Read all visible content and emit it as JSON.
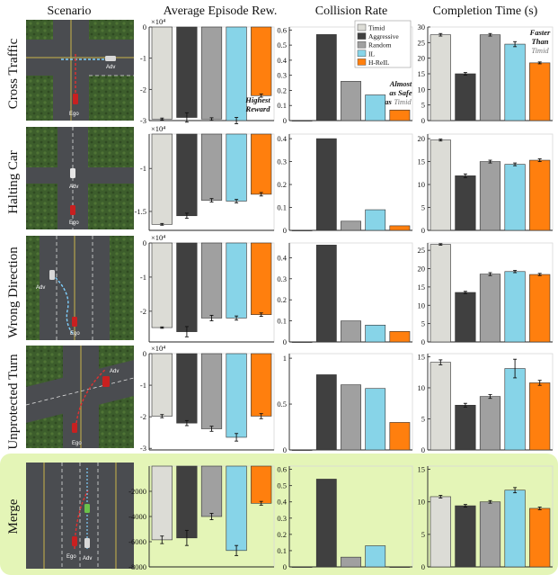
{
  "columns": {
    "scenario": "Scenario",
    "reward": "Average Episode Rew.",
    "collision": "Collision Rate",
    "time": "Completion Time (s)"
  },
  "scene_labels": {
    "ego": "Ego",
    "adv": "Adv"
  },
  "legend": {
    "placement": "top-right of Cross Traffic collision panel",
    "entries": [
      {
        "name": "Timid",
        "color": "#dcdcd6"
      },
      {
        "name": "Aggressive",
        "color": "#404040"
      },
      {
        "name": "Random",
        "color": "#a0a0a0"
      },
      {
        "name": "IL",
        "color": "#87d4e8"
      },
      {
        "name": "H-ReIL",
        "color": "#ff7f0e"
      }
    ]
  },
  "annotations": {
    "highest_reward": [
      "Highest",
      "Reward"
    ],
    "almost_safe": [
      "Almost",
      "as Safe",
      "as"
    ],
    "almost_safe_ref": "Timid",
    "faster_than": [
      "Faster",
      "Than"
    ],
    "faster_than_ref": "Timid"
  },
  "merge_highlight_color": "#e4f5b7",
  "chart_data": [
    {
      "scenario": "Cross Traffic",
      "reward": {
        "type": "bar",
        "multiplier": "×10⁴",
        "values": [
          -2.95,
          -2.9,
          -2.95,
          -3.0,
          -2.2
        ],
        "errors": [
          0.03,
          0.15,
          0.04,
          0.1,
          0.05
        ],
        "ylim": [
          -3,
          0
        ],
        "ticks": [
          0,
          -1,
          -2,
          -3
        ],
        "tick_labels": [
          "0",
          "-1",
          "-2",
          "-3"
        ]
      },
      "collision": {
        "type": "bar",
        "values": [
          0.0,
          0.57,
          0.26,
          0.17,
          0.07
        ],
        "errors": [
          0,
          0,
          0,
          0,
          0
        ],
        "ylim": [
          0,
          0.62
        ],
        "ticks": [
          0,
          0.1,
          0.2,
          0.3,
          0.4,
          0.5,
          0.6
        ],
        "tick_labels": [
          "0",
          "0.1",
          "0.2",
          "0.3",
          "0.4",
          "0.5",
          "0.6"
        ]
      },
      "time": {
        "type": "bar",
        "values": [
          27.5,
          15.0,
          27.5,
          24.5,
          18.5
        ],
        "errors": [
          0.4,
          0.4,
          0.4,
          0.8,
          0.3
        ],
        "ylim": [
          0,
          30
        ],
        "ticks": [
          0,
          5,
          10,
          15,
          20,
          25,
          30
        ],
        "tick_labels": [
          "0",
          "5",
          "10",
          "15",
          "20",
          "25",
          "30"
        ]
      }
    },
    {
      "scenario": "Halting Car",
      "reward": {
        "type": "bar",
        "multiplier": "×10⁴",
        "values": [
          -1.65,
          -1.55,
          -1.37,
          -1.38,
          -1.3
        ],
        "errors": [
          0.01,
          0.03,
          0.02,
          0.02,
          0.02
        ],
        "ylim": [
          -1.72,
          -0.6
        ],
        "ticks": [
          -1,
          -1.5
        ],
        "tick_labels": [
          "-1",
          "-1.5"
        ]
      },
      "collision": {
        "type": "bar",
        "values": [
          0.0,
          0.4,
          0.04,
          0.09,
          0.02
        ],
        "errors": [
          0,
          0,
          0,
          0,
          0
        ],
        "ylim": [
          0,
          0.42
        ],
        "ticks": [
          0,
          0.1,
          0.2,
          0.3,
          0.4
        ],
        "tick_labels": [
          "0",
          "0.1",
          "0.2",
          "0.3",
          "0.4"
        ]
      },
      "time": {
        "type": "bar",
        "values": [
          19.7,
          11.9,
          15.0,
          14.4,
          15.3
        ],
        "errors": [
          0.2,
          0.4,
          0.3,
          0.3,
          0.3
        ],
        "ylim": [
          0,
          21
        ],
        "ticks": [
          0,
          5,
          10,
          15,
          20
        ],
        "tick_labels": [
          "0",
          "5",
          "10",
          "15",
          "20"
        ]
      }
    },
    {
      "scenario": "Wrong Direction",
      "reward": {
        "type": "bar",
        "multiplier": "×10⁴",
        "values": [
          -2.48,
          -2.6,
          -2.2,
          -2.2,
          -2.1
        ],
        "errors": [
          0.02,
          0.15,
          0.08,
          0.06,
          0.05
        ],
        "ylim": [
          -2.9,
          0
        ],
        "ticks": [
          0,
          -1,
          -2
        ],
        "tick_labels": [
          "0",
          "-1",
          "-2"
        ]
      },
      "collision": {
        "type": "bar",
        "values": [
          0.0,
          0.46,
          0.1,
          0.08,
          0.05
        ],
        "errors": [
          0,
          0,
          0,
          0,
          0
        ],
        "ylim": [
          0,
          0.47
        ],
        "ticks": [
          0,
          0.1,
          0.2,
          0.3,
          0.4
        ],
        "tick_labels": [
          "0",
          "0.1",
          "0.2",
          "0.3",
          "0.4"
        ]
      },
      "time": {
        "type": "bar",
        "values": [
          26.6,
          13.5,
          18.5,
          19.2,
          18.4
        ],
        "errors": [
          0.2,
          0.3,
          0.4,
          0.3,
          0.3
        ],
        "ylim": [
          0,
          27
        ],
        "ticks": [
          0,
          5,
          10,
          15,
          20,
          25
        ],
        "tick_labels": [
          "0",
          "5",
          "10",
          "15",
          "20",
          "25"
        ]
      }
    },
    {
      "scenario": "Unprotected Turn",
      "reward": {
        "type": "bar",
        "multiplier": "×10⁴",
        "values": [
          -1.98,
          -2.2,
          -2.38,
          -2.65,
          -1.98
        ],
        "errors": [
          0.05,
          0.08,
          0.08,
          0.12,
          0.08
        ],
        "ylim": [
          -3.05,
          0
        ],
        "ticks": [
          0,
          -1,
          -2,
          -3
        ],
        "tick_labels": [
          "0",
          "-1",
          "-2",
          "-3"
        ]
      },
      "collision": {
        "type": "bar",
        "values": [
          0.0,
          0.82,
          0.71,
          0.67,
          0.3
        ],
        "errors": [
          0,
          0,
          0,
          0,
          0
        ],
        "ylim": [
          0,
          1.05
        ],
        "ticks": [
          0,
          0.5,
          1
        ],
        "tick_labels": [
          "0",
          "0.5",
          "1"
        ]
      },
      "time": {
        "type": "bar",
        "values": [
          14.1,
          7.2,
          8.6,
          13.1,
          10.8
        ],
        "errors": [
          0.4,
          0.3,
          0.3,
          1.5,
          0.4
        ],
        "ylim": [
          0,
          15.5
        ],
        "ticks": [
          0,
          5,
          10,
          15
        ],
        "tick_labels": [
          "0",
          "5",
          "10",
          "15"
        ]
      }
    },
    {
      "scenario": "Merge",
      "reward": {
        "type": "bar",
        "multiplier": "",
        "values": [
          -5850,
          -5700,
          -4000,
          -6700,
          -2950
        ],
        "errors": [
          300,
          600,
          250,
          400,
          150
        ],
        "ylim": [
          -8000,
          0
        ],
        "ticks": [
          -2000,
          -4000,
          -6000,
          -8000
        ],
        "tick_labels": [
          "-2000",
          "-4000",
          "-6000",
          "-8000"
        ]
      },
      "collision": {
        "type": "bar",
        "values": [
          0.0,
          0.54,
          0.06,
          0.13,
          0.0
        ],
        "errors": [
          0,
          0,
          0,
          0,
          0
        ],
        "ylim": [
          0,
          0.62
        ],
        "ticks": [
          0,
          0.1,
          0.2,
          0.3,
          0.4,
          0.5,
          0.6
        ],
        "tick_labels": [
          "0",
          "0.1",
          "0.2",
          "0.3",
          "0.4",
          "0.5",
          "0.6"
        ]
      },
      "time": {
        "type": "bar",
        "values": [
          10.8,
          9.4,
          10.0,
          11.8,
          9.0
        ],
        "errors": [
          0.2,
          0.2,
          0.2,
          0.4,
          0.2
        ],
        "ylim": [
          0,
          15.5
        ],
        "ticks": [
          0,
          5,
          10,
          15
        ],
        "tick_labels": [
          "0",
          "5",
          "10",
          "15"
        ]
      }
    }
  ]
}
